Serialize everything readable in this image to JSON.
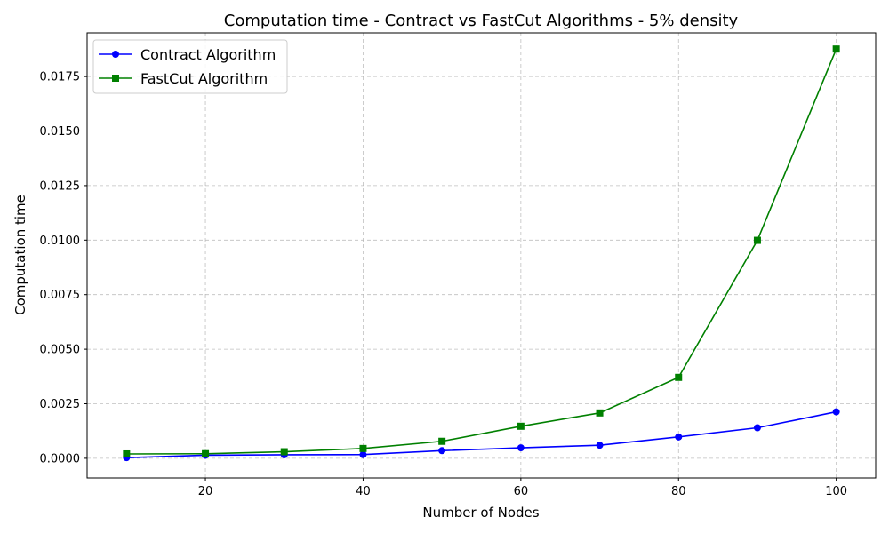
{
  "chart_data": {
    "type": "line",
    "title": "Computation time  - Contract vs FastCut Algorithms - 5% density",
    "xlabel": "Number of Nodes",
    "ylabel": "Computation time",
    "xlim": [
      5,
      105
    ],
    "ylim": [
      -0.0009,
      0.0195
    ],
    "xticks": [
      20,
      40,
      60,
      80,
      100
    ],
    "xtick_labels": [
      "20",
      "40",
      "60",
      "80",
      "100"
    ],
    "yticks": [
      0,
      0.0025,
      0.005,
      0.0075,
      0.01,
      0.0125,
      0.015,
      0.0175
    ],
    "ytick_labels": [
      "0.0000",
      "0.0025",
      "0.0050",
      "0.0075",
      "0.0100",
      "0.0125",
      "0.0150",
      "0.0175"
    ],
    "grid": true,
    "legend_position": "top-left",
    "x": [
      10,
      20,
      30,
      40,
      50,
      60,
      70,
      80,
      90,
      100
    ],
    "series": [
      {
        "name": "Contract Algorithm",
        "color": "#0000ff",
        "marker": "circle",
        "values": [
          3e-05,
          0.00014,
          0.00016,
          0.00017,
          0.00035,
          0.00048,
          0.0006,
          0.00098,
          0.0014,
          0.00213
        ]
      },
      {
        "name": "FastCut Algorithm",
        "color": "#008000",
        "marker": "square",
        "values": [
          0.0002,
          0.00021,
          0.0003,
          0.00045,
          0.00078,
          0.00147,
          0.00208,
          0.00371,
          0.00999,
          0.01876
        ]
      }
    ]
  }
}
